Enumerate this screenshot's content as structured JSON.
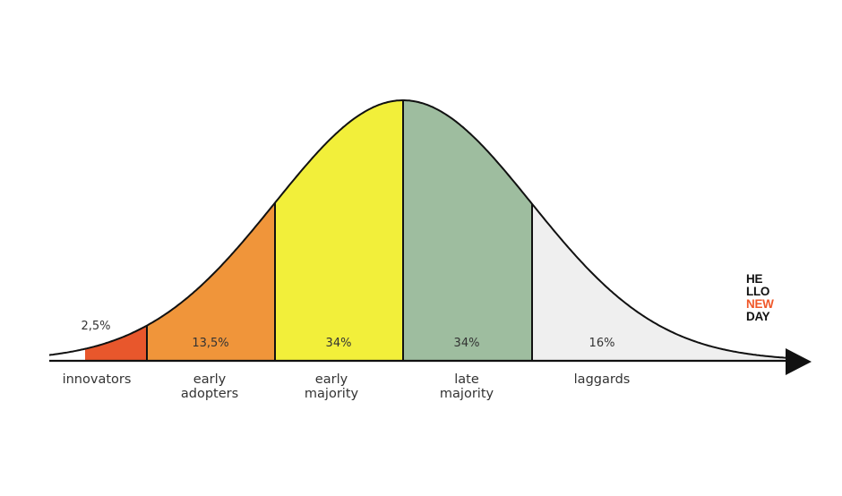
{
  "diagram": {
    "title": "",
    "type": "bell-curve-adoption",
    "segments": [
      {
        "id": "innovators",
        "percent": "2,5%",
        "label_line1": "innovators",
        "label_line2": "",
        "color": "#e8572c"
      },
      {
        "id": "early-adopters",
        "percent": "13,5%",
        "label_line1": "early",
        "label_line2": "adopters",
        "color": "#f0953a"
      },
      {
        "id": "early-majority",
        "percent": "34%",
        "label_line1": "early",
        "label_line2": "majority",
        "color": "#f2ef3a"
      },
      {
        "id": "late-majority",
        "percent": "34%",
        "label_line1": "late",
        "label_line2": "majority",
        "color": "#9ebd9f"
      },
      {
        "id": "laggards",
        "percent": "16%",
        "label_line1": "laggards",
        "label_line2": "",
        "color": "#efefef"
      }
    ]
  },
  "logo": {
    "line1": "HE",
    "line2": "LLO",
    "line3": "NEW",
    "line4": "DAY"
  }
}
